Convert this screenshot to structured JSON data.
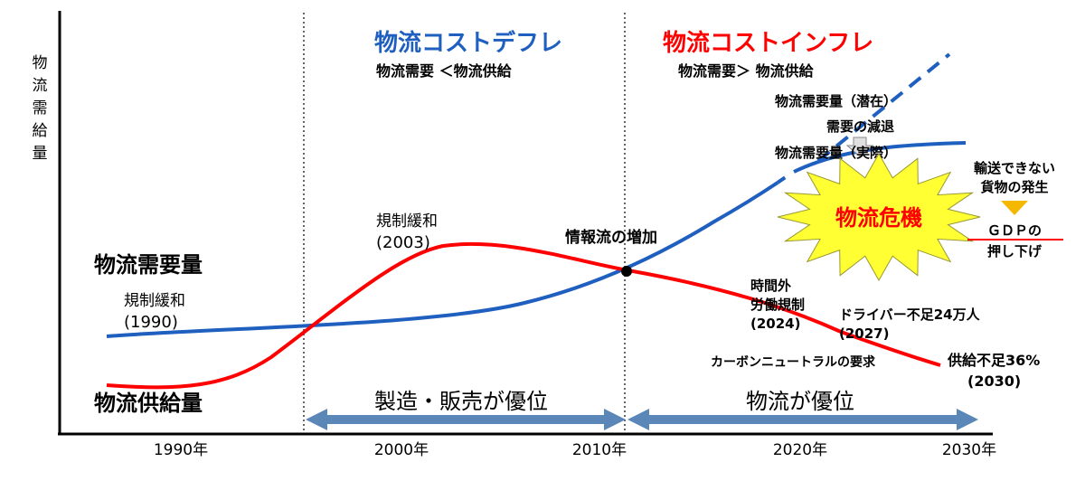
{
  "colors": {
    "demand": "#1f5fbf",
    "supply": "#ff0000",
    "arrow": "#5b86b8",
    "burst_fill": "#ffff33",
    "burst_text": "#ff0000",
    "blue_title": "#1f5fbf",
    "red_title": "#ff0000",
    "triangle": "#f5b800",
    "axis": "#000000"
  },
  "axis": {
    "y_label": "物流需給量",
    "x_ticks": [
      "1990年",
      "2000年",
      "2010年",
      "2020年",
      "2030年"
    ]
  },
  "periods": {
    "deflation_title": "物流コストデフレ",
    "deflation_sub": "物流需要 ＜物流供給",
    "inflation_title": "物流コストインフレ",
    "inflation_sub": "物流需要＞ 物流供給"
  },
  "series": {
    "demand_label": "物流需要量",
    "supply_label": "物流供給量"
  },
  "annotations": {
    "dereg1990_title": "規制緩和",
    "dereg1990_year": "(1990)",
    "dereg2003_title": "規制緩和",
    "dereg2003_year": "(2003)",
    "info_flow": "情報流の増加",
    "demand_potential": "物流需要量（潜在）",
    "demand_decline": "需要の減退",
    "demand_actual": "物流需要量（実際）",
    "crisis": "物流危機",
    "undeliverable_1": "輸送できない",
    "undeliverable_2": "貨物の発生",
    "gdp_1": "ＧＤＰの",
    "gdp_2": "押し下げ",
    "overtime_1": "時間外",
    "overtime_2": "労働規制",
    "overtime_3": "(2024)",
    "driver_shortage": "ドライバー不足24万人",
    "driver_year": "(2027)",
    "carbon": "カーボンニュートラルの要求",
    "supply_shortage": "供給不足36%",
    "supply_shortage_year": "(2030)"
  },
  "bottom_arrows": {
    "left_label": "製造・販売が優位",
    "right_label": "物流が優位"
  }
}
